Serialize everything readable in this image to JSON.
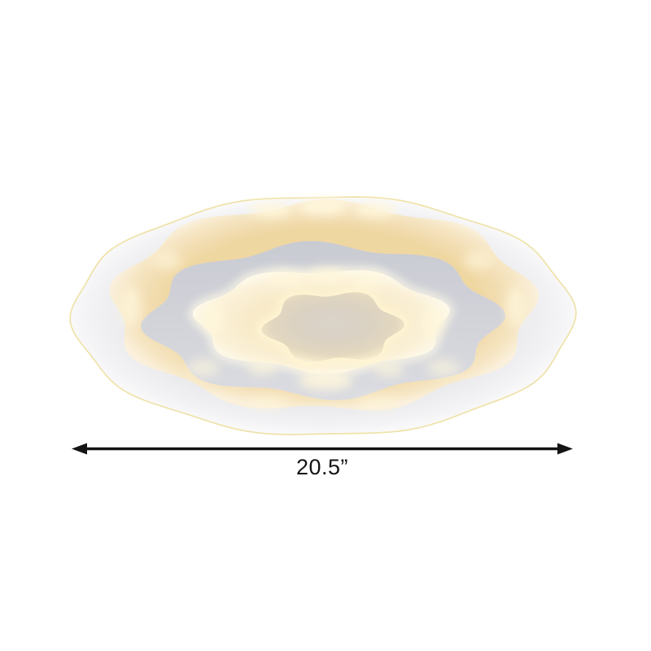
{
  "dimension": {
    "label": "20.5”"
  },
  "colors": {
    "background": "#ffffff",
    "dimension_line": "#141414",
    "rim_glow": "#eddf9e",
    "outer_plate": [
      "#ededf0",
      "#ebebee",
      "#f3f3f5",
      "#f9f9fa"
    ],
    "warm_ring": [
      "#efd7a2",
      "#f2ddb2",
      "#f6e6c4",
      "#faf0dc"
    ],
    "gray_ring": [
      "#c9cbd3",
      "#d2d3d9",
      "#dbdce1"
    ],
    "glow_disc": [
      "#f6e6c2",
      "#f8eac9",
      "#fbf1d8",
      "#fdf8e8"
    ],
    "glow_halo": "#fffbe9",
    "center_panel": [
      "#d9d3c9",
      "#dbd2c2",
      "#e2d7bf",
      "#f0e4c6",
      "#f8efd3"
    ],
    "panel_halo": "#fff5d3",
    "led_hotspot": "#fff7dc"
  }
}
